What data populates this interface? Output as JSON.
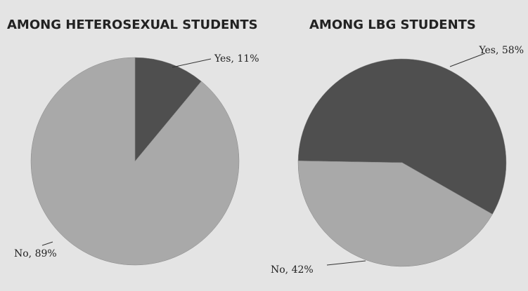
{
  "chart_data": [
    {
      "type": "pie",
      "title": "AMONG HETEROSEXUAL STUDENTS",
      "values": [
        11,
        89
      ],
      "value_labels": [
        "Yes, 11%",
        "No, 89%"
      ],
      "colors": [
        "#4f4f4f",
        "#a9a9a9"
      ]
    },
    {
      "type": "pie",
      "title": "AMONG LBG STUDENTS",
      "values": [
        58,
        42
      ],
      "value_labels": [
        "Yes, 58%",
        "No, 42%"
      ],
      "colors": [
        "#4f4f4f",
        "#a9a9a9"
      ]
    }
  ]
}
